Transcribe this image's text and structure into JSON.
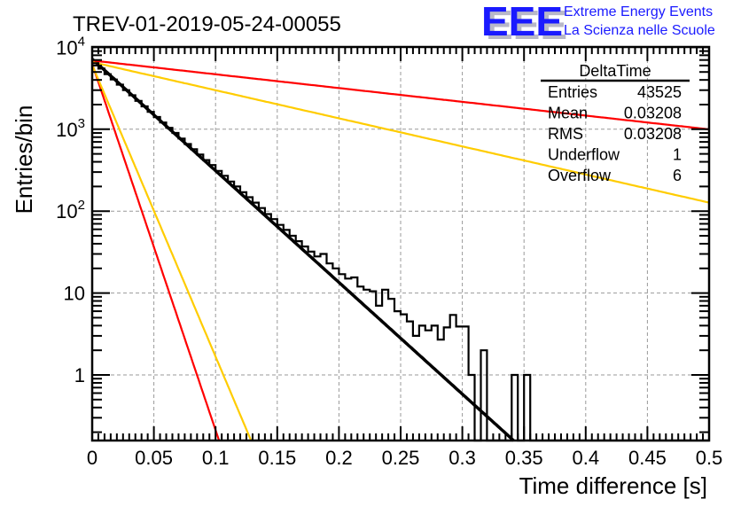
{
  "header": {
    "title": "TREV-01-2019-05-24-00055",
    "logo": {
      "letters": "EEE",
      "line1": "Extreme Energy Events",
      "line2": "La Scienza nelle Scuole",
      "color": "#1a1aff",
      "shadow_color": "#b8b8c8"
    }
  },
  "stats_box": {
    "name": "DeltaTime",
    "rows": [
      {
        "label": "Entries",
        "value": "43525"
      },
      {
        "label": "Mean",
        "value": "0.03208"
      },
      {
        "label": "RMS",
        "value": "0.03208"
      },
      {
        "label": "Underflow",
        "value": "1"
      },
      {
        "label": "Overflow",
        "value": "6"
      }
    ]
  },
  "chart_data": {
    "type": "histogram",
    "title": "TREV-01-2019-05-24-00055",
    "xlabel": "Time difference [s]",
    "ylabel": "Entries/bin",
    "xlim": [
      0,
      0.5
    ],
    "ylim": [
      0.158,
      11000
    ],
    "yscale": "log",
    "grid": true,
    "x_ticks": [
      "0",
      "0.05",
      "0.1",
      "0.15",
      "0.2",
      "0.25",
      "0.3",
      "0.35",
      "0.4",
      "0.45",
      "0.5"
    ],
    "x_tick_values": [
      0,
      0.05,
      0.1,
      0.15,
      0.2,
      0.25,
      0.3,
      0.35,
      0.4,
      0.45,
      0.5
    ],
    "y_ticks": [
      {
        "value": 1,
        "label": "1",
        "exp": ""
      },
      {
        "value": 10,
        "label": "10",
        "exp": ""
      },
      {
        "value": 100,
        "label": "10",
        "exp": "2"
      },
      {
        "value": 1000,
        "label": "10",
        "exp": "3"
      },
      {
        "value": 10000,
        "label": "10",
        "exp": "4"
      }
    ],
    "bin_width": 0.005,
    "bins_start": 0,
    "histogram": {
      "name": "DeltaTime",
      "color": "#000000",
      "values": [
        6400,
        5500,
        4700,
        4050,
        3500,
        3000,
        2600,
        2220,
        1900,
        1630,
        1410,
        1210,
        1040,
        900,
        770,
        660,
        570,
        490,
        420,
        365,
        310,
        270,
        230,
        200,
        170,
        148,
        127,
        109,
        92,
        80,
        68,
        59,
        50,
        43,
        37,
        32,
        28,
        30,
        23,
        20,
        17,
        15,
        15.5,
        12,
        11,
        10.5,
        7,
        11,
        8.5,
        6,
        5.5,
        4.5,
        3,
        4,
        3.5,
        4,
        2.7,
        3.8,
        5.4,
        3.9,
        3.9,
        1,
        0,
        2,
        0,
        0,
        0,
        0,
        1,
        0,
        1,
        0,
        0,
        0,
        0,
        0,
        0,
        0,
        0,
        0,
        0,
        0,
        0,
        0,
        0,
        0,
        0,
        0,
        0,
        0,
        0,
        0,
        0,
        0,
        0,
        0,
        0,
        0,
        0,
        0
      ]
    },
    "series": [
      {
        "name": "fit",
        "color": "#000000",
        "type": "exponential",
        "amplitude": 7200,
        "slope": -31.4
      },
      {
        "name": "red-shallow",
        "color": "#ff0000",
        "type": "exponential",
        "amplitude": 6900,
        "slope": -3.87
      },
      {
        "name": "yellow-shallow",
        "color": "#ffcc00",
        "type": "exponential",
        "amplitude": 6600,
        "slope": -7.9
      },
      {
        "name": "red-steep",
        "color": "#ff0000",
        "type": "exponential",
        "amplitude": 6300,
        "slope": -103
      },
      {
        "name": "yellow-steep",
        "color": "#ffcc00",
        "type": "exponential",
        "amplitude": 6100,
        "slope": -82
      }
    ]
  }
}
